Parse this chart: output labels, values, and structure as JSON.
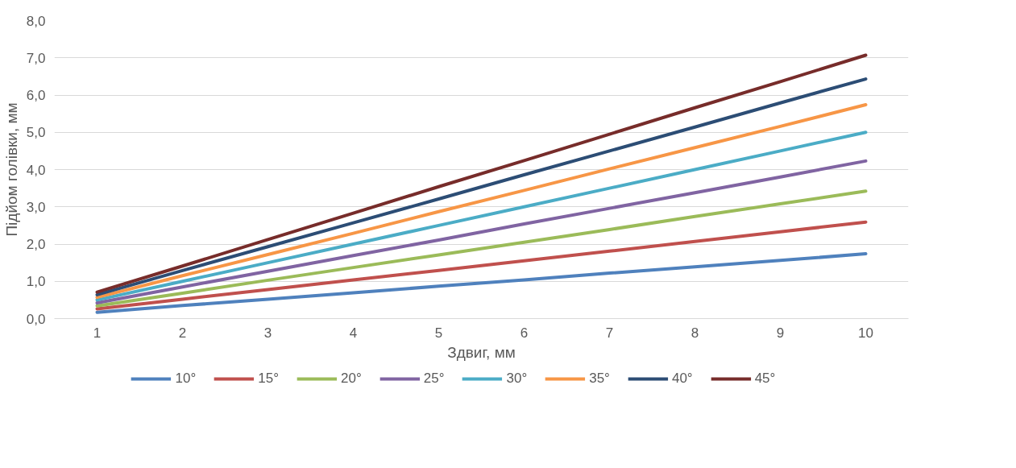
{
  "chart_data": {
    "type": "line",
    "xlabel": "Здвиг, мм",
    "ylabel": "Підйом голівки, мм",
    "categories": [
      "1",
      "2",
      "3",
      "4",
      "5",
      "6",
      "7",
      "8",
      "9",
      "10"
    ],
    "ylim": [
      0,
      8
    ],
    "yticks": [
      {
        "value": 0,
        "label": "0,0"
      },
      {
        "value": 1,
        "label": "1,0"
      },
      {
        "value": 2,
        "label": "2,0"
      },
      {
        "value": 3,
        "label": "3,0"
      },
      {
        "value": 4,
        "label": "4,0"
      },
      {
        "value": 5,
        "label": "5,0"
      },
      {
        "value": 6,
        "label": "6,0"
      },
      {
        "value": 7,
        "label": "7,0"
      },
      {
        "value": 8,
        "label": "8,0"
      }
    ],
    "grid": "y",
    "legend": "bottom",
    "marker": "none",
    "line_style": "solid",
    "series": [
      {
        "name": "10°",
        "color": "#4f81bd",
        "values": [
          0.17,
          0.35,
          0.52,
          0.69,
          0.87,
          1.04,
          1.22,
          1.39,
          1.56,
          1.74
        ]
      },
      {
        "name": "15°",
        "color": "#c0504d",
        "values": [
          0.26,
          0.52,
          0.78,
          1.04,
          1.29,
          1.55,
          1.81,
          2.07,
          2.33,
          2.59
        ]
      },
      {
        "name": "20°",
        "color": "#9bbb59",
        "values": [
          0.34,
          0.68,
          1.03,
          1.37,
          1.71,
          2.05,
          2.39,
          2.74,
          3.08,
          3.42
        ]
      },
      {
        "name": "25°",
        "color": "#8064a2",
        "values": [
          0.42,
          0.85,
          1.27,
          1.69,
          2.11,
          2.54,
          2.96,
          3.38,
          3.8,
          4.23
        ]
      },
      {
        "name": "30°",
        "color": "#4bacc6",
        "values": [
          0.5,
          1.0,
          1.5,
          2.0,
          2.5,
          3.0,
          3.5,
          4.0,
          4.5,
          5.0
        ]
      },
      {
        "name": "35°",
        "color": "#f79646",
        "values": [
          0.57,
          1.15,
          1.72,
          2.29,
          2.87,
          3.44,
          4.02,
          4.59,
          5.16,
          5.74
        ]
      },
      {
        "name": "40°",
        "color": "#2c4d75",
        "values": [
          0.64,
          1.29,
          1.93,
          2.57,
          3.21,
          3.86,
          4.5,
          5.14,
          5.79,
          6.43
        ]
      },
      {
        "name": "45°",
        "color": "#772c2a",
        "values": [
          0.71,
          1.41,
          2.12,
          2.83,
          3.54,
          4.24,
          4.95,
          5.66,
          6.36,
          7.07
        ]
      }
    ]
  }
}
